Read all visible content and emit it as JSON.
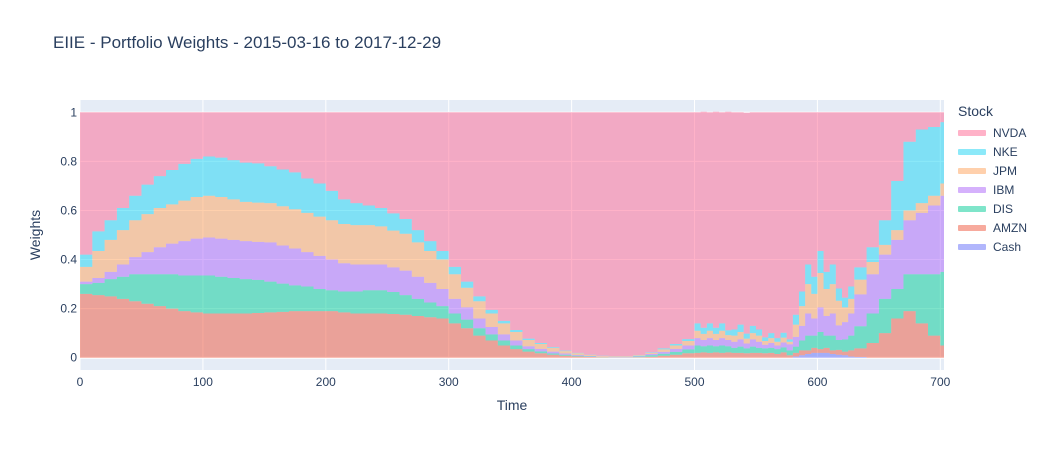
{
  "chart_data": {
    "type": "area",
    "title": "EIIE - Portfolio Weights - 2015-03-16 to 2017-12-29",
    "xlabel": "Time",
    "ylabel": "Weights",
    "xlim": [
      0,
      703
    ],
    "ylim": [
      -0.05,
      1.05
    ],
    "x_ticks": [
      0,
      100,
      200,
      300,
      400,
      500,
      600,
      700
    ],
    "y_ticks": [
      0,
      0.2,
      0.4,
      0.6,
      0.8,
      1
    ],
    "y_tick_labels": [
      "0",
      "0.2",
      "0.4",
      "0.6",
      "0.8",
      "1"
    ],
    "grid": true,
    "stacked": true,
    "legend_title": "Stock",
    "legend_position": "right",
    "x": [
      0,
      10,
      20,
      30,
      40,
      50,
      60,
      70,
      80,
      90,
      100,
      110,
      120,
      130,
      140,
      150,
      160,
      170,
      180,
      190,
      200,
      210,
      220,
      230,
      240,
      250,
      260,
      270,
      280,
      290,
      300,
      310,
      320,
      330,
      340,
      350,
      360,
      370,
      380,
      390,
      400,
      410,
      420,
      430,
      440,
      450,
      460,
      470,
      480,
      490,
      500,
      505,
      510,
      515,
      520,
      525,
      530,
      535,
      540,
      545,
      550,
      555,
      560,
      565,
      570,
      575,
      580,
      585,
      590,
      595,
      600,
      605,
      610,
      615,
      620,
      625,
      630,
      640,
      650,
      660,
      670,
      680,
      690,
      700,
      703
    ],
    "series": [
      {
        "name": "Cash",
        "color": "#636efa",
        "values": [
          0,
          0,
          0,
          0,
          0,
          0,
          0,
          0,
          0,
          0,
          0,
          0,
          0,
          0,
          0,
          0,
          0,
          0,
          0,
          0,
          0,
          0,
          0,
          0,
          0,
          0,
          0,
          0,
          0,
          0,
          0,
          0,
          0,
          0,
          0,
          0,
          0,
          0,
          0,
          0,
          0,
          0,
          0,
          0,
          0,
          0,
          0,
          0,
          0,
          0,
          0,
          0,
          0,
          0,
          0,
          0,
          0,
          0,
          0,
          0,
          0,
          0,
          0,
          0,
          0,
          0,
          0.005,
          0.01,
          0.015,
          0.02,
          0.02,
          0.02,
          0.015,
          0.012,
          0.01,
          0.005,
          0.003,
          0,
          0,
          0,
          0,
          0,
          0,
          0,
          0
        ]
      },
      {
        "name": "AMZN",
        "color": "#ef553b",
        "values": [
          0.26,
          0.255,
          0.25,
          0.24,
          0.23,
          0.22,
          0.21,
          0.2,
          0.19,
          0.185,
          0.18,
          0.18,
          0.18,
          0.18,
          0.182,
          0.185,
          0.187,
          0.19,
          0.19,
          0.19,
          0.19,
          0.185,
          0.18,
          0.18,
          0.18,
          0.178,
          0.175,
          0.17,
          0.165,
          0.16,
          0.14,
          0.12,
          0.09,
          0.07,
          0.05,
          0.035,
          0.025,
          0.018,
          0.012,
          0.008,
          0.005,
          0.003,
          0.002,
          0.001,
          0.001,
          0.002,
          0.004,
          0.008,
          0.012,
          0.018,
          0.02,
          0.022,
          0.02,
          0.022,
          0.02,
          0.022,
          0.02,
          0.02,
          0.018,
          0.02,
          0.02,
          0.018,
          0.02,
          0.015,
          0.022,
          0.01,
          0.015,
          0.02,
          0.015,
          0.02,
          0.015,
          0.02,
          0.015,
          0.02,
          0.015,
          0.025,
          0.035,
          0.06,
          0.1,
          0.16,
          0.19,
          0.14,
          0.09,
          0.05,
          0.045
        ]
      },
      {
        "name": "DIS",
        "color": "#00cc96",
        "values": [
          0.04,
          0.05,
          0.07,
          0.09,
          0.11,
          0.12,
          0.13,
          0.14,
          0.145,
          0.15,
          0.155,
          0.15,
          0.145,
          0.14,
          0.135,
          0.125,
          0.115,
          0.105,
          0.1,
          0.09,
          0.085,
          0.085,
          0.09,
          0.095,
          0.095,
          0.09,
          0.08,
          0.07,
          0.06,
          0.05,
          0.04,
          0.035,
          0.03,
          0.025,
          0.02,
          0.015,
          0.01,
          0.008,
          0.005,
          0.004,
          0.003,
          0.002,
          0.001,
          0.001,
          0.001,
          0.003,
          0.006,
          0.008,
          0.012,
          0.016,
          0.03,
          0.025,
          0.03,
          0.025,
          0.03,
          0.025,
          0.02,
          0.025,
          0.02,
          0.025,
          0.02,
          0.02,
          0.02,
          0.02,
          0.02,
          0.02,
          0.025,
          0.04,
          0.06,
          0.05,
          0.07,
          0.05,
          0.06,
          0.04,
          0.05,
          0.06,
          0.09,
          0.12,
          0.14,
          0.12,
          0.15,
          0.2,
          0.25,
          0.3,
          0.3
        ]
      },
      {
        "name": "IBM",
        "color": "#ab63fa",
        "values": [
          0.01,
          0.02,
          0.03,
          0.05,
          0.07,
          0.09,
          0.11,
          0.125,
          0.14,
          0.15,
          0.155,
          0.155,
          0.155,
          0.155,
          0.155,
          0.16,
          0.155,
          0.15,
          0.14,
          0.135,
          0.125,
          0.115,
          0.11,
          0.105,
          0.105,
          0.1,
          0.1,
          0.09,
          0.08,
          0.07,
          0.06,
          0.05,
          0.04,
          0.03,
          0.025,
          0.02,
          0.012,
          0.01,
          0.008,
          0.005,
          0.003,
          0.002,
          0.001,
          0.001,
          0.001,
          0.002,
          0.005,
          0.008,
          0.012,
          0.016,
          0.03,
          0.025,
          0.03,
          0.025,
          0.03,
          0.025,
          0.025,
          0.03,
          0.02,
          0.03,
          0.025,
          0.015,
          0.02,
          0.015,
          0.02,
          0.025,
          0.04,
          0.06,
          0.09,
          0.07,
          0.1,
          0.08,
          0.09,
          0.06,
          0.07,
          0.09,
          0.13,
          0.16,
          0.18,
          0.2,
          0.22,
          0.25,
          0.28,
          0.31,
          0.31
        ]
      },
      {
        "name": "JPM",
        "color": "#ffa15a",
        "values": [
          0.06,
          0.11,
          0.13,
          0.14,
          0.15,
          0.155,
          0.16,
          0.16,
          0.165,
          0.17,
          0.17,
          0.17,
          0.165,
          0.16,
          0.16,
          0.16,
          0.16,
          0.16,
          0.16,
          0.16,
          0.16,
          0.16,
          0.16,
          0.16,
          0.155,
          0.15,
          0.15,
          0.14,
          0.13,
          0.12,
          0.1,
          0.08,
          0.07,
          0.055,
          0.045,
          0.035,
          0.025,
          0.02,
          0.015,
          0.01,
          0.007,
          0.004,
          0.003,
          0.002,
          0.002,
          0.003,
          0.005,
          0.01,
          0.014,
          0.018,
          0.03,
          0.025,
          0.03,
          0.025,
          0.03,
          0.02,
          0.025,
          0.03,
          0.02,
          0.025,
          0.025,
          0.015,
          0.02,
          0.015,
          0.02,
          0.01,
          0.05,
          0.08,
          0.12,
          0.1,
          0.14,
          0.11,
          0.12,
          0.1,
          0.06,
          0.06,
          0.06,
          0.05,
          0.04,
          0.04,
          0.04,
          0.04,
          0.04,
          0.05,
          0.05
        ]
      },
      {
        "name": "NKE",
        "color": "#19d3f3",
        "values": [
          0.05,
          0.08,
          0.08,
          0.09,
          0.1,
          0.12,
          0.13,
          0.14,
          0.15,
          0.155,
          0.16,
          0.16,
          0.16,
          0.16,
          0.16,
          0.15,
          0.15,
          0.15,
          0.14,
          0.135,
          0.12,
          0.1,
          0.09,
          0.08,
          0.075,
          0.07,
          0.06,
          0.05,
          0.04,
          0.035,
          0.03,
          0.025,
          0.02,
          0.015,
          0.01,
          0.008,
          0.006,
          0.004,
          0.003,
          0.002,
          0.002,
          0.001,
          0.001,
          0.001,
          0.001,
          0.001,
          0.002,
          0.004,
          0.006,
          0.008,
          0.03,
          0.025,
          0.03,
          0.025,
          0.03,
          0.02,
          0.025,
          0.03,
          0.02,
          0.03,
          0.025,
          0.015,
          0.02,
          0.015,
          0.02,
          0.01,
          0.04,
          0.06,
          0.08,
          0.07,
          0.09,
          0.07,
          0.08,
          0.05,
          0.04,
          0.05,
          0.05,
          0.06,
          0.1,
          0.2,
          0.28,
          0.3,
          0.28,
          0.25,
          0.24
        ]
      },
      {
        "name": "NVDA",
        "color": "#ff6692",
        "values": [
          0.58,
          0.485,
          0.44,
          0.39,
          0.34,
          0.295,
          0.26,
          0.235,
          0.21,
          0.19,
          0.18,
          0.185,
          0.195,
          0.205,
          0.208,
          0.22,
          0.233,
          0.245,
          0.27,
          0.29,
          0.32,
          0.355,
          0.37,
          0.38,
          0.39,
          0.412,
          0.435,
          0.48,
          0.525,
          0.565,
          0.63,
          0.69,
          0.75,
          0.805,
          0.85,
          0.887,
          0.922,
          0.94,
          0.957,
          0.971,
          0.98,
          0.988,
          0.992,
          0.994,
          0.994,
          0.989,
          0.978,
          0.962,
          0.944,
          0.924,
          0.86,
          0.88,
          0.86,
          0.88,
          0.86,
          0.89,
          0.885,
          0.865,
          0.9,
          0.87,
          0.885,
          0.917,
          0.9,
          0.92,
          0.898,
          0.925,
          0.825,
          0.73,
          0.62,
          0.67,
          0.565,
          0.65,
          0.62,
          0.718,
          0.755,
          0.71,
          0.632,
          0.55,
          0.44,
          0.28,
          0.12,
          0.07,
          0.06,
          0.04,
          0.055
        ]
      }
    ]
  }
}
